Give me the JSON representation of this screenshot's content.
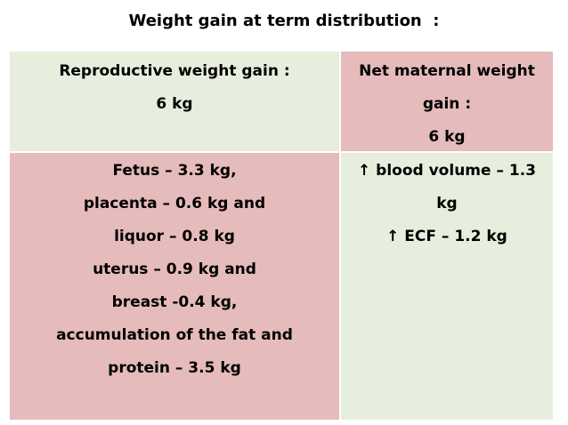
{
  "title": "Weight gain at term distribution  :",
  "table": {
    "header_left": [
      "Reproductive weight gain :",
      "6 kg"
    ],
    "header_right": [
      "Net maternal weight",
      "gain :",
      "6 kg"
    ],
    "body_left": [
      "Fetus – 3.3 kg,",
      "placenta – 0.6 kg and",
      "liquor – 0.8 kg",
      "uterus – 0.9 kg and",
      "breast -0.4 kg,",
      "accumulation of the fat and",
      "protein – 3.5 kg"
    ],
    "body_right": [
      "↑ blood volume – 1.3",
      "kg",
      "↑ ECF  – 1.2 kg"
    ]
  },
  "colors": {
    "green_cell": "#e8eedd",
    "pink_cell": "#e6bbbb"
  }
}
